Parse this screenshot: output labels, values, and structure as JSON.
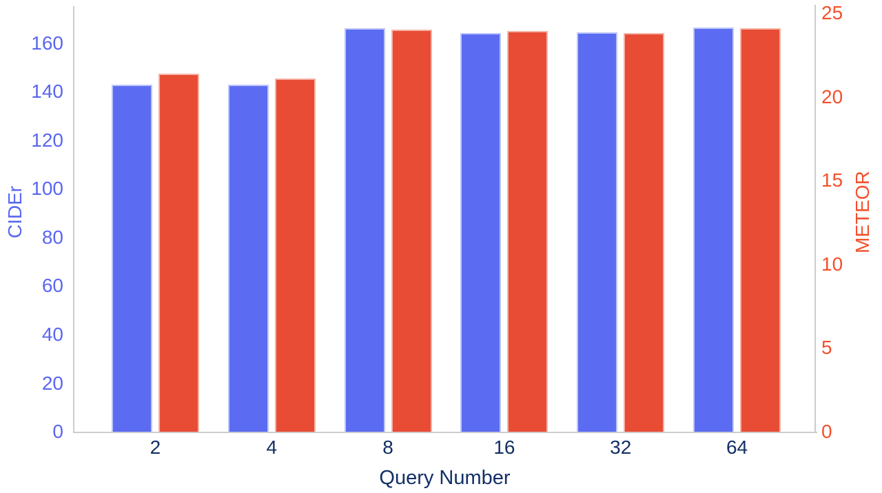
{
  "chart_data": {
    "type": "bar",
    "title": "",
    "categories": [
      "2",
      "4",
      "8",
      "16",
      "32",
      "64"
    ],
    "series": [
      {
        "name": "CIDEr",
        "axis": "left",
        "color": "#5B6CF2",
        "values": [
          142.9,
          143.0,
          166.3,
          164.3,
          164.6,
          166.6
        ]
      },
      {
        "name": "METEOR",
        "axis": "right",
        "color": "#E84C35",
        "values": [
          21.4,
          21.1,
          24.0,
          23.95,
          23.8,
          24.1
        ]
      }
    ],
    "xlabel": "Query Number",
    "left_axis": {
      "label": "CIDEr",
      "color": "#5A67F0",
      "ticks": [
        0,
        20,
        40,
        60,
        80,
        100,
        120,
        140,
        160
      ],
      "max": 175
    },
    "right_axis": {
      "label": "METEOR",
      "color": "#F4502C",
      "ticks": [
        0,
        5,
        10,
        15,
        20,
        25
      ],
      "max": 25.37
    },
    "grid": false,
    "legend": "none",
    "layout": {
      "bar_pairs": true
    }
  }
}
